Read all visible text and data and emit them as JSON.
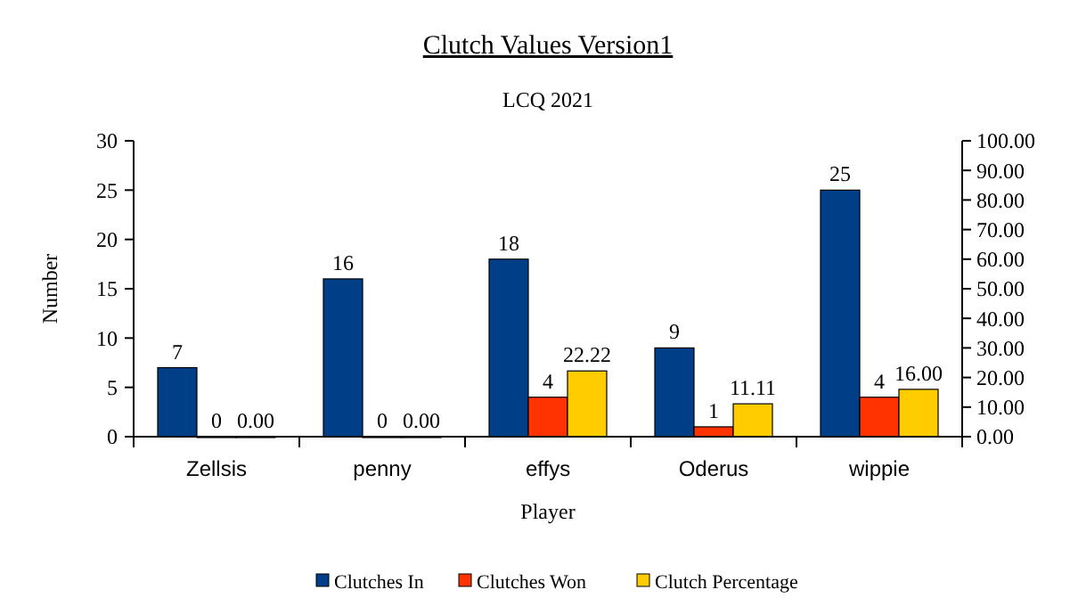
{
  "chart_data": {
    "type": "bar",
    "title": "Clutch Values Version1",
    "subtitle": "LCQ 2021",
    "xlabel": "Player",
    "ylabel": "Number",
    "categories": [
      "Zellsis",
      "penny",
      "effys",
      "Oderus",
      "wippie"
    ],
    "series": [
      {
        "name": "Clutches In",
        "color": "#003f87",
        "values": [
          7,
          16,
          18,
          9,
          25
        ],
        "value_labels": [
          "7",
          "16",
          "18",
          "9",
          "25"
        ]
      },
      {
        "name": "Clutches Won",
        "color": "#ff3300",
        "values": [
          0,
          0,
          4,
          1,
          4
        ],
        "value_labels": [
          "0",
          "0",
          "4",
          "1",
          "4"
        ]
      },
      {
        "name": "Clutch Percentage",
        "color": "#ffcc00",
        "axis": "y2",
        "values": [
          0,
          0,
          22.22,
          11.11,
          16
        ],
        "value_labels": [
          "0.00",
          "0.00",
          "22.22",
          "11.11",
          "16.00"
        ]
      }
    ],
    "ylim": [
      0,
      30
    ],
    "yticks": [
      0,
      5,
      10,
      15,
      20,
      25,
      30
    ],
    "y2lim": [
      0,
      100
    ],
    "y2ticks": [
      {
        "value": 0,
        "label": "0.00"
      },
      {
        "value": 10,
        "label": "10.00"
      },
      {
        "value": 20,
        "label": "20.00"
      },
      {
        "value": 30,
        "label": "30.00"
      },
      {
        "value": 40,
        "label": "40.00"
      },
      {
        "value": 50,
        "label": "50.00"
      },
      {
        "value": 60,
        "label": "60.00"
      },
      {
        "value": 70,
        "label": "70.00"
      },
      {
        "value": 80,
        "label": "80.00"
      },
      {
        "value": 90,
        "label": "90.00"
      },
      {
        "value": 100,
        "label": "100.00"
      }
    ],
    "legend": "bottom"
  }
}
